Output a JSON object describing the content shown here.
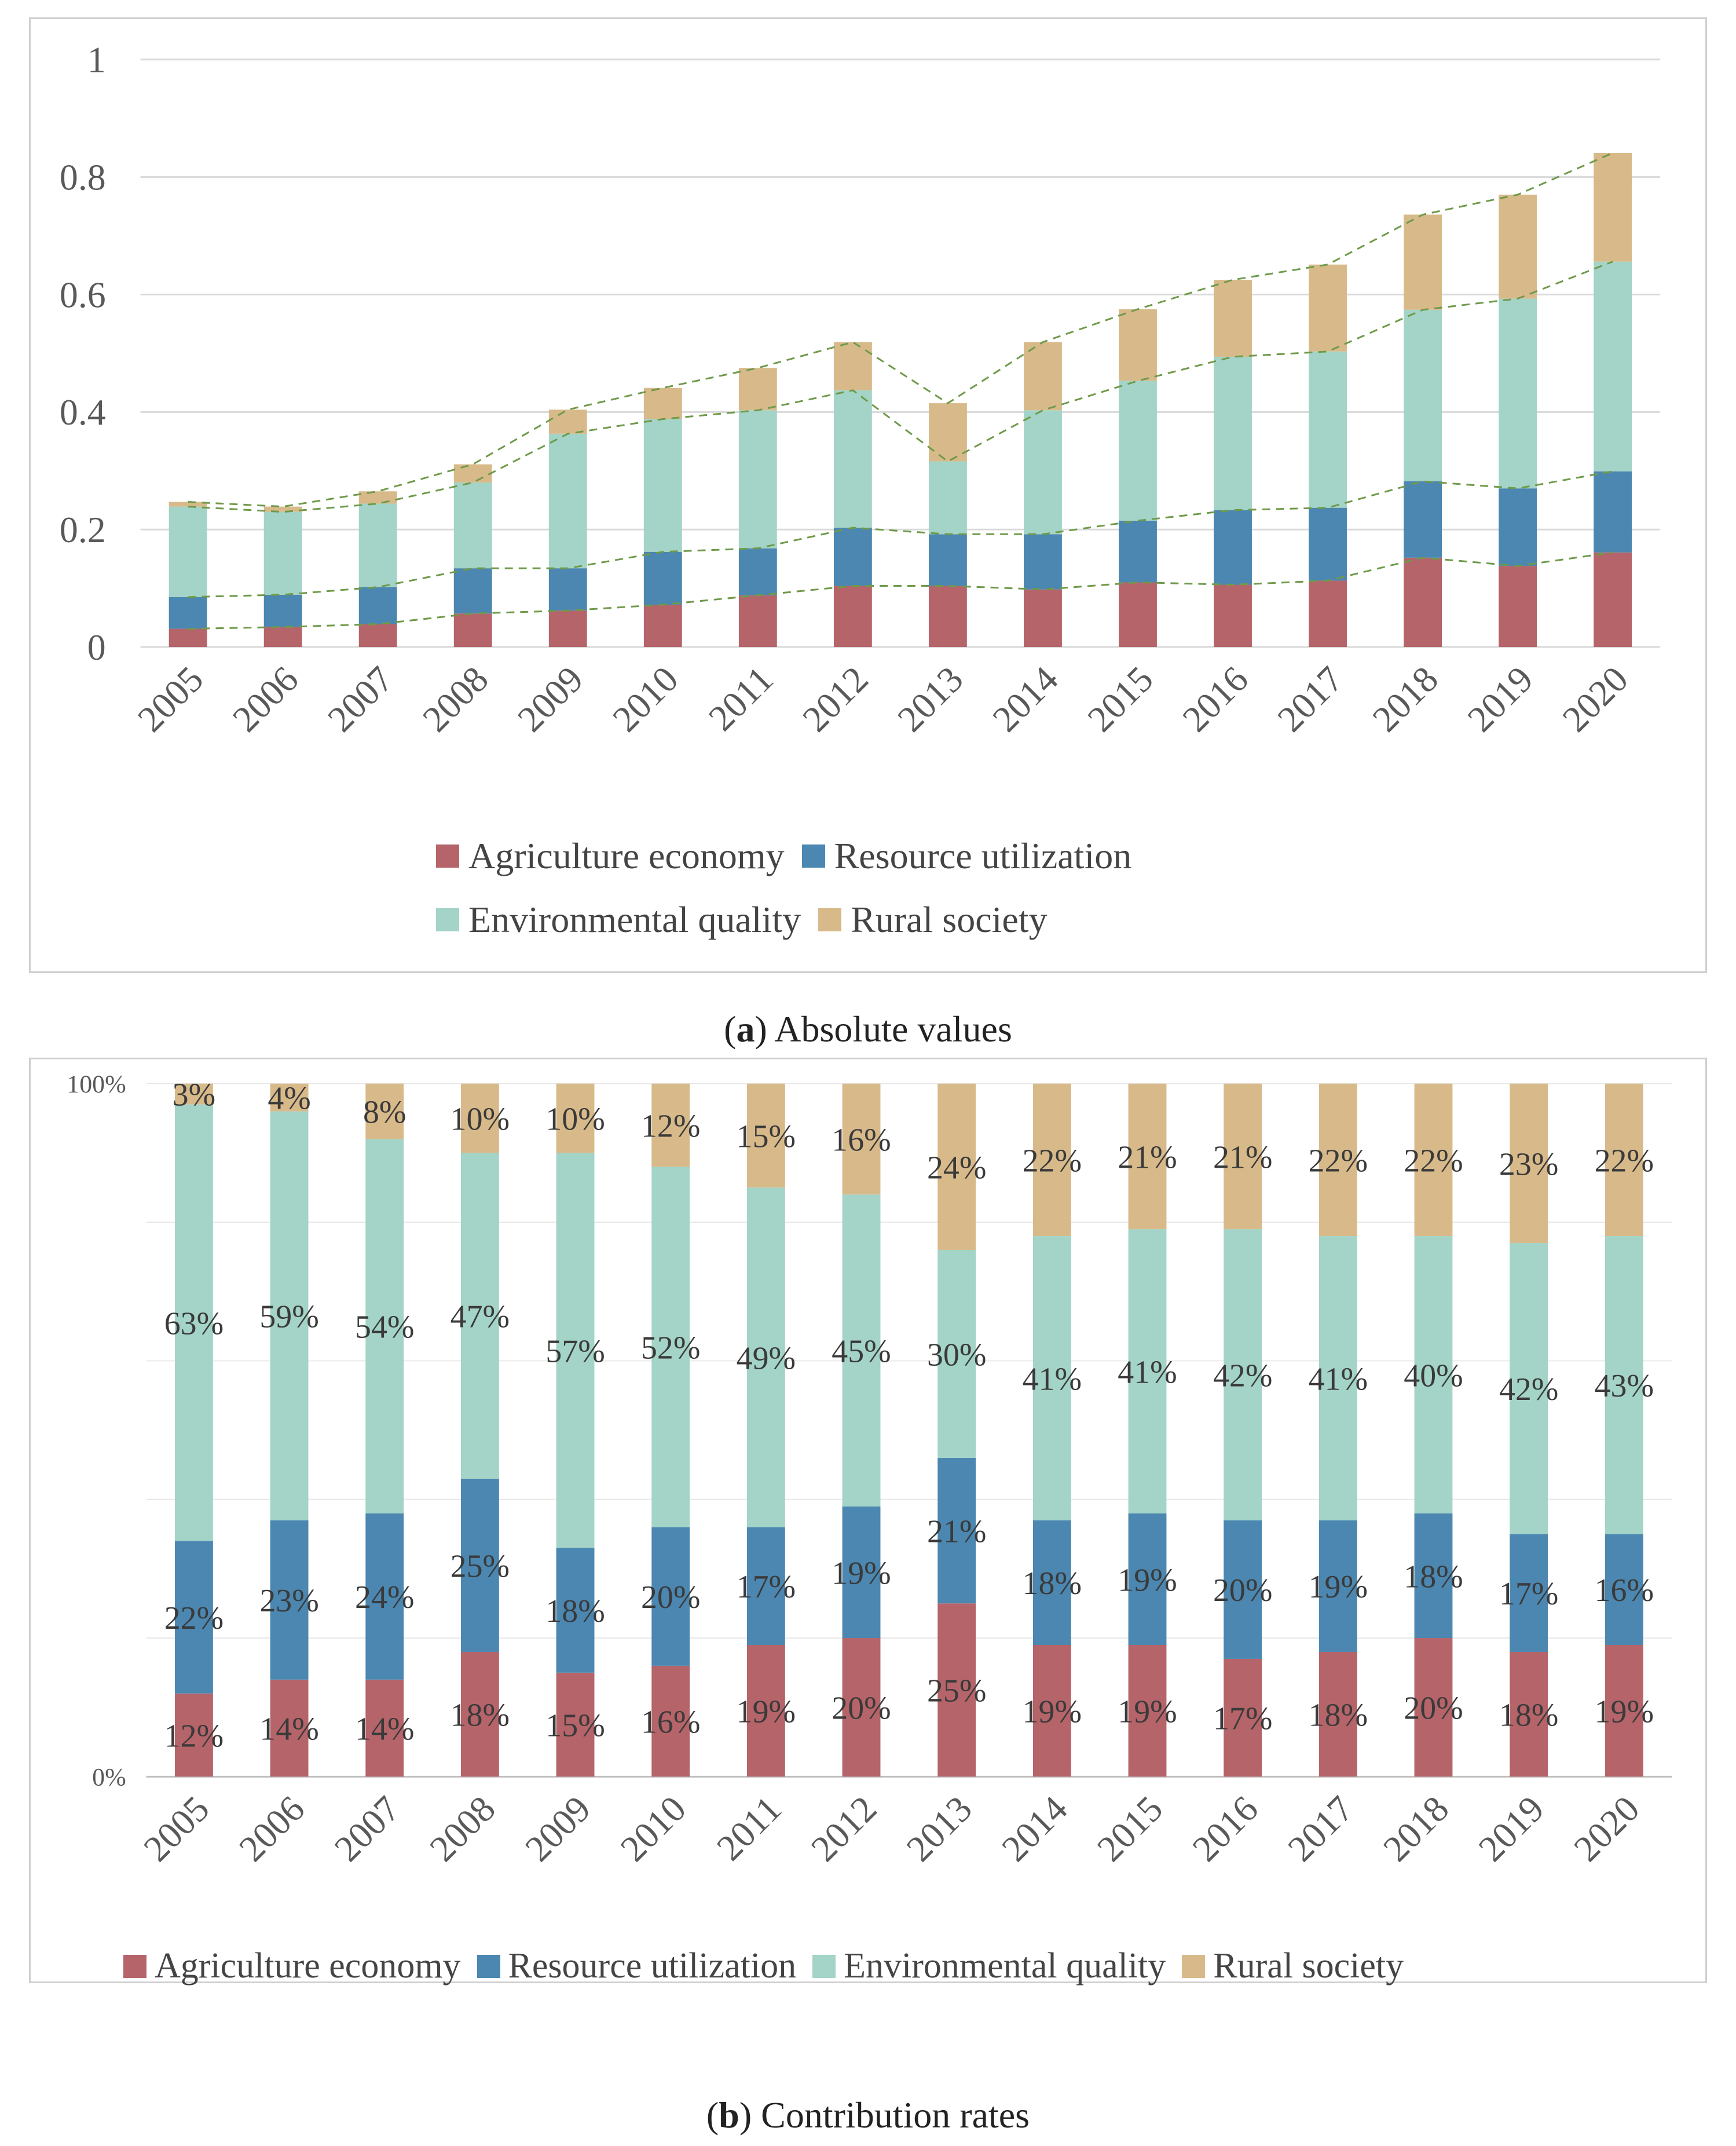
{
  "colors": {
    "agriculture": "#b5646a",
    "resource": "#4b87b0",
    "environment": "#a3d4c7",
    "rural": "#d8ba8a",
    "dashed": "#6f9a4a",
    "grid": "#d9d9d9",
    "tick_text": "#595959"
  },
  "legend": {
    "agriculture": "Agriculture economy",
    "resource": "Resource utilization",
    "environment": "Environmental quality",
    "rural": "Rural society"
  },
  "caption_a": {
    "letter": "a",
    "open": "(",
    "close": ")",
    "text": " Absolute values"
  },
  "caption_b": {
    "letter": "b",
    "open": "(",
    "close": ")",
    "text": " Contribution rates"
  },
  "chart_data": [
    {
      "type": "bar",
      "stacked": true,
      "title": "(a) Absolute values",
      "categories": [
        "2005",
        "2006",
        "2007",
        "2008",
        "2009",
        "2010",
        "2011",
        "2012",
        "2013",
        "2014",
        "2015",
        "2016",
        "2017",
        "2018",
        "2019",
        "2020"
      ],
      "series": [
        {
          "name": "Agriculture economy",
          "key": "agriculture",
          "values": [
            0.031,
            0.034,
            0.039,
            0.057,
            0.062,
            0.072,
            0.088,
            0.104,
            0.104,
            0.098,
            0.11,
            0.106,
            0.113,
            0.152,
            0.138,
            0.161
          ]
        },
        {
          "name": "Resource utilization",
          "key": "resource",
          "values": [
            0.054,
            0.055,
            0.063,
            0.077,
            0.072,
            0.09,
            0.08,
            0.099,
            0.088,
            0.094,
            0.105,
            0.127,
            0.124,
            0.13,
            0.132,
            0.138
          ]
        },
        {
          "name": "Environmental quality",
          "key": "environment",
          "values": [
            0.154,
            0.141,
            0.142,
            0.146,
            0.229,
            0.226,
            0.235,
            0.234,
            0.124,
            0.211,
            0.238,
            0.261,
            0.266,
            0.292,
            0.323,
            0.357
          ]
        },
        {
          "name": "Rural society",
          "key": "rural",
          "values": [
            0.008,
            0.009,
            0.021,
            0.031,
            0.041,
            0.053,
            0.072,
            0.082,
            0.099,
            0.116,
            0.122,
            0.131,
            0.148,
            0.162,
            0.177,
            0.185
          ]
        }
      ],
      "ylim": [
        0,
        1
      ],
      "yticks": [
        "0",
        "0.2",
        "0.4",
        "0.6",
        "0.8",
        "1"
      ],
      "grid": true,
      "trend_lines": "dashed green lines connecting cumulative stack tops",
      "legend_position": "bottom"
    },
    {
      "type": "bar",
      "stacked": true,
      "percent": true,
      "title": "(b) Contribution rates",
      "categories": [
        "2005",
        "2006",
        "2007",
        "2008",
        "2009",
        "2010",
        "2011",
        "2012",
        "2013",
        "2014",
        "2015",
        "2016",
        "2017",
        "2018",
        "2019",
        "2020"
      ],
      "series": [
        {
          "name": "Agriculture economy",
          "key": "agriculture",
          "values": [
            12,
            14,
            14,
            18,
            15,
            16,
            19,
            20,
            25,
            19,
            19,
            17,
            18,
            20,
            18,
            19
          ],
          "labels": [
            "12%",
            "14%",
            "14%",
            "18%",
            "15%",
            "16%",
            "19%",
            "20%",
            "25%",
            "19%",
            "19%",
            "17%",
            "18%",
            "20%",
            "18%",
            "19%"
          ]
        },
        {
          "name": "Resource utilization",
          "key": "resource",
          "values": [
            22,
            23,
            24,
            25,
            18,
            20,
            17,
            19,
            21,
            18,
            19,
            20,
            19,
            18,
            17,
            16
          ],
          "labels": [
            "22%",
            "23%",
            "24%",
            "25%",
            "18%",
            "20%",
            "17%",
            "19%",
            "21%",
            "18%",
            "19%",
            "20%",
            "19%",
            "18%",
            "17%",
            "16%"
          ]
        },
        {
          "name": "Environmental quality",
          "key": "environment",
          "values": [
            63,
            59,
            54,
            47,
            57,
            52,
            49,
            45,
            30,
            41,
            41,
            42,
            41,
            40,
            42,
            43
          ],
          "labels": [
            "63%",
            "59%",
            "54%",
            "47%",
            "57%",
            "52%",
            "49%",
            "45%",
            "30%",
            "41%",
            "41%",
            "42%",
            "41%",
            "40%",
            "42%",
            "43%"
          ]
        },
        {
          "name": "Rural society",
          "key": "rural",
          "values": [
            3,
            4,
            8,
            10,
            10,
            12,
            15,
            16,
            24,
            22,
            21,
            21,
            22,
            22,
            23,
            22
          ],
          "labels": [
            "3%",
            "4%",
            "8%",
            "10%",
            "10%",
            "12%",
            "15%",
            "16%",
            "24%",
            "22%",
            "21%",
            "21%",
            "22%",
            "22%",
            "23%",
            "22%"
          ]
        }
      ],
      "ylim": [
        0,
        100
      ],
      "yticks": [
        "0%",
        "100%"
      ],
      "grid": true,
      "legend_position": "bottom"
    }
  ]
}
